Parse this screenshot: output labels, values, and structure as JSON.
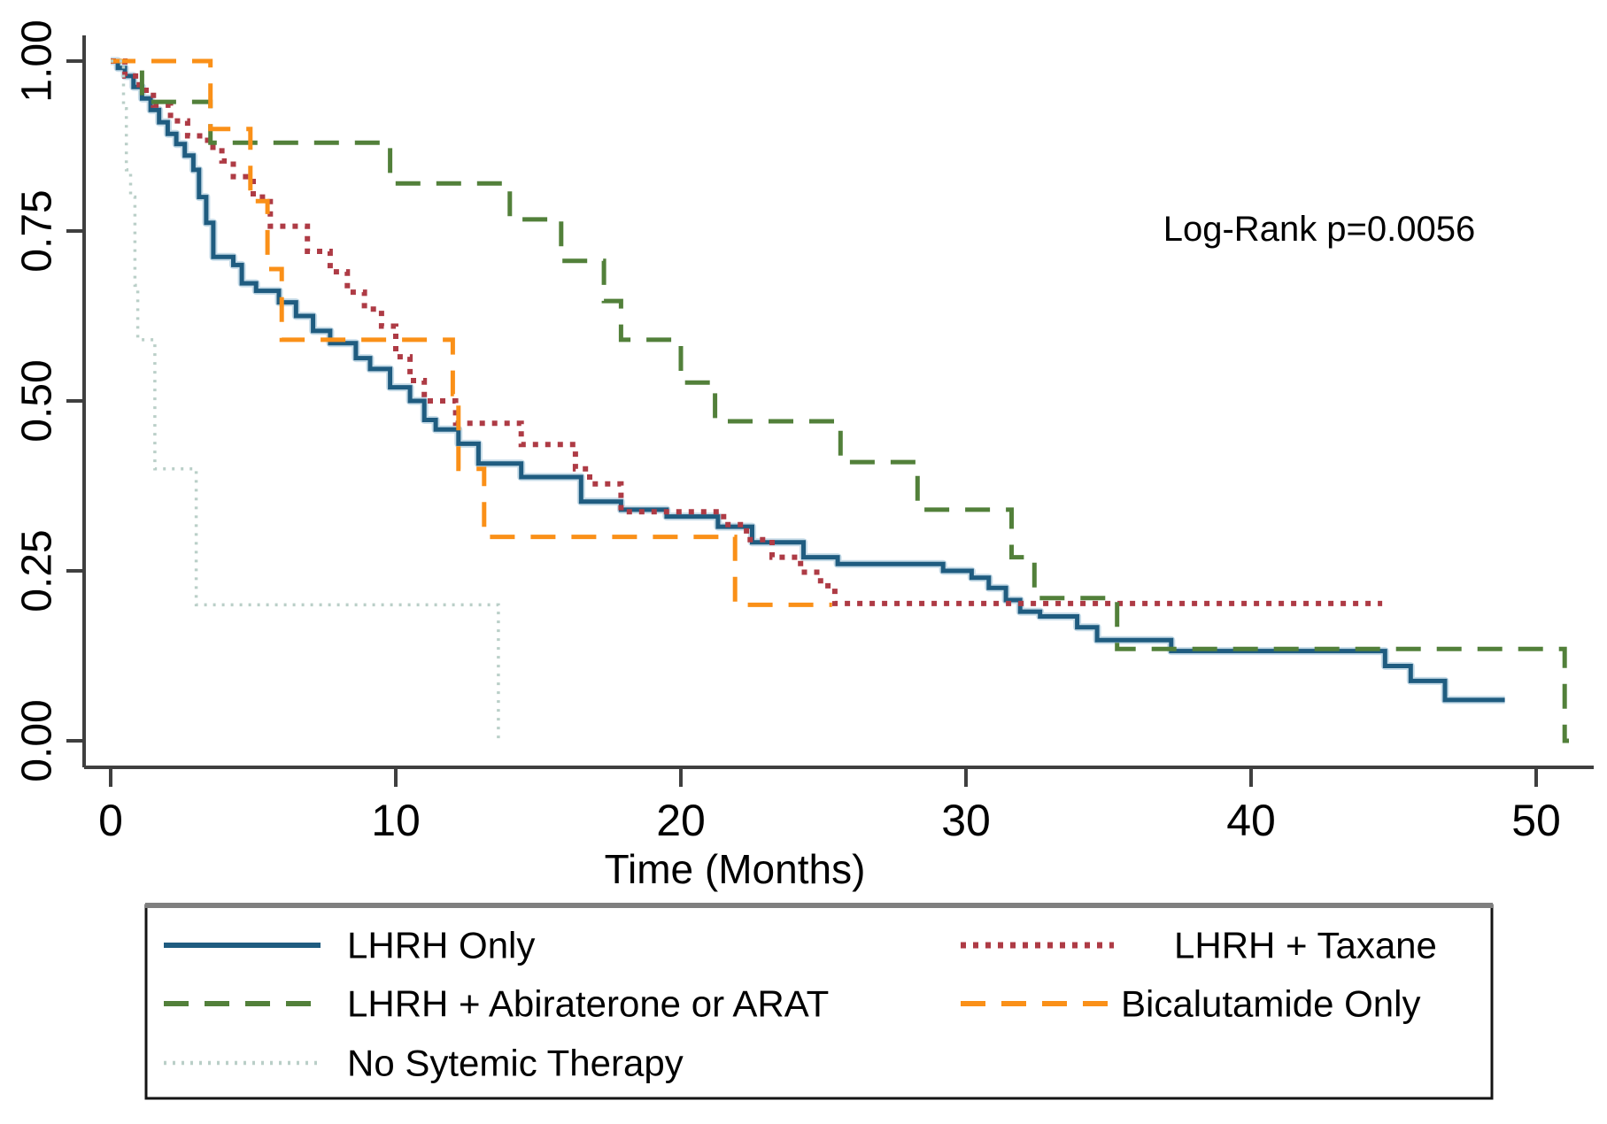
{
  "figure": {
    "background": "#ffffff",
    "axis_color": "#3f3f3f",
    "text_color": "#000000",
    "legend_border_color": "#141414",
    "legend_top_border_color": "#7f7f7f"
  },
  "chart_data": {
    "type": "line",
    "subtype": "kaplan-meier-step",
    "title": "",
    "xlabel": "Time (Months)",
    "ylabel": "",
    "annotation": "Log-Rank p=0.0056",
    "grid": false,
    "legend_position": "bottom-box",
    "xlim": [
      0,
      52.5
    ],
    "ylim": [
      0.0,
      1.0
    ],
    "xticks": [
      "0",
      "10",
      "20",
      "30",
      "40",
      "50"
    ],
    "xtick_values": [
      0,
      10,
      20,
      30,
      40,
      50
    ],
    "ytick_labels": [
      "1.00",
      "0.75",
      "0.50",
      "0.25",
      "0.00"
    ],
    "ytick_values": [
      1.0,
      0.75,
      0.5,
      0.25,
      0.0
    ],
    "series": [
      {
        "name": "LHRH Only",
        "color": "#1f5c80",
        "halo": "#c7dce8",
        "style": "solid",
        "end": 48.9,
        "points": [
          [
            0,
            1.0
          ],
          [
            0.25,
            0.99
          ],
          [
            0.5,
            0.978
          ],
          [
            0.8,
            0.962
          ],
          [
            1.1,
            0.945
          ],
          [
            1.4,
            0.928
          ],
          [
            1.7,
            0.91
          ],
          [
            2.0,
            0.893
          ],
          [
            2.3,
            0.878
          ],
          [
            2.6,
            0.861
          ],
          [
            2.9,
            0.84
          ],
          [
            3.1,
            0.8
          ],
          [
            3.35,
            0.762
          ],
          [
            3.6,
            0.712
          ],
          [
            4.3,
            0.7
          ],
          [
            4.6,
            0.673
          ],
          [
            5.1,
            0.662
          ],
          [
            5.9,
            0.645
          ],
          [
            6.5,
            0.625
          ],
          [
            7.1,
            0.603
          ],
          [
            7.7,
            0.585
          ],
          [
            8.6,
            0.563
          ],
          [
            9.1,
            0.547
          ],
          [
            9.8,
            0.52
          ],
          [
            10.5,
            0.5
          ],
          [
            11.0,
            0.472
          ],
          [
            11.4,
            0.458
          ],
          [
            12.2,
            0.437
          ],
          [
            12.9,
            0.408
          ],
          [
            14.4,
            0.388
          ],
          [
            16.5,
            0.352
          ],
          [
            17.9,
            0.34
          ],
          [
            19.5,
            0.33
          ],
          [
            21.3,
            0.315
          ],
          [
            22.5,
            0.292
          ],
          [
            24.3,
            0.27
          ],
          [
            25.5,
            0.26
          ],
          [
            29.2,
            0.25
          ],
          [
            30.2,
            0.24
          ],
          [
            30.8,
            0.225
          ],
          [
            31.4,
            0.207
          ],
          [
            31.9,
            0.19
          ],
          [
            32.6,
            0.183
          ],
          [
            33.9,
            0.167
          ],
          [
            34.6,
            0.148
          ],
          [
            37.2,
            0.132
          ],
          [
            44.7,
            0.11
          ],
          [
            45.6,
            0.088
          ],
          [
            46.8,
            0.06
          ]
        ]
      },
      {
        "name": "LHRH + Taxane",
        "color": "#ae3b45",
        "style": "dotted",
        "end": 44.6,
        "points": [
          [
            0,
            1.0
          ],
          [
            0.5,
            0.978
          ],
          [
            1.0,
            0.957
          ],
          [
            1.5,
            0.935
          ],
          [
            2.1,
            0.912
          ],
          [
            2.7,
            0.89
          ],
          [
            3.4,
            0.873
          ],
          [
            3.9,
            0.853
          ],
          [
            4.3,
            0.83
          ],
          [
            5.0,
            0.8
          ],
          [
            5.6,
            0.757
          ],
          [
            6.9,
            0.72
          ],
          [
            7.7,
            0.69
          ],
          [
            8.3,
            0.66
          ],
          [
            8.9,
            0.635
          ],
          [
            9.5,
            0.61
          ],
          [
            10.0,
            0.565
          ],
          [
            10.5,
            0.53
          ],
          [
            11.0,
            0.5
          ],
          [
            12.1,
            0.467
          ],
          [
            14.4,
            0.436
          ],
          [
            16.3,
            0.4
          ],
          [
            16.8,
            0.378
          ],
          [
            17.9,
            0.337
          ],
          [
            21.5,
            0.318
          ],
          [
            22.3,
            0.296
          ],
          [
            23.2,
            0.27
          ],
          [
            24.2,
            0.248
          ],
          [
            24.9,
            0.228
          ],
          [
            25.4,
            0.202
          ]
        ]
      },
      {
        "name": "LHRH + Abiraterone or ARAT",
        "color": "#52803a",
        "style": "long-dash",
        "end": 51.15,
        "points": [
          [
            0,
            1.0
          ],
          [
            1.1,
            0.94
          ],
          [
            3.5,
            0.88
          ],
          [
            9.8,
            0.82
          ],
          [
            14.0,
            0.767
          ],
          [
            15.8,
            0.706
          ],
          [
            17.3,
            0.647
          ],
          [
            17.9,
            0.59
          ],
          [
            20.0,
            0.527
          ],
          [
            21.2,
            0.47
          ],
          [
            25.6,
            0.41
          ],
          [
            28.3,
            0.34
          ],
          [
            31.6,
            0.27
          ],
          [
            32.4,
            0.21
          ],
          [
            35.3,
            0.135
          ],
          [
            51.0,
            0.0
          ]
        ]
      },
      {
        "name": "Bicalutamide Only",
        "color": "#fa9018",
        "style": "long-dash",
        "end": 25.3,
        "points": [
          [
            0,
            1.0
          ],
          [
            3.5,
            0.9
          ],
          [
            4.9,
            0.794
          ],
          [
            5.5,
            0.694
          ],
          [
            6.0,
            0.59
          ],
          [
            12.0,
            0.51
          ],
          [
            12.2,
            0.4
          ],
          [
            13.1,
            0.3
          ],
          [
            21.9,
            0.2
          ]
        ]
      },
      {
        "name": "No Sytemic Therapy",
        "color": "#bacfc8",
        "style": "fine-dot",
        "end": 13.7,
        "points": [
          [
            0,
            1.0
          ],
          [
            0.45,
            0.93
          ],
          [
            0.55,
            0.84
          ],
          [
            0.7,
            0.8
          ],
          [
            0.85,
            0.67
          ],
          [
            0.95,
            0.59
          ],
          [
            1.55,
            0.4
          ],
          [
            3.0,
            0.2
          ],
          [
            13.6,
            0.0
          ]
        ]
      }
    ]
  }
}
